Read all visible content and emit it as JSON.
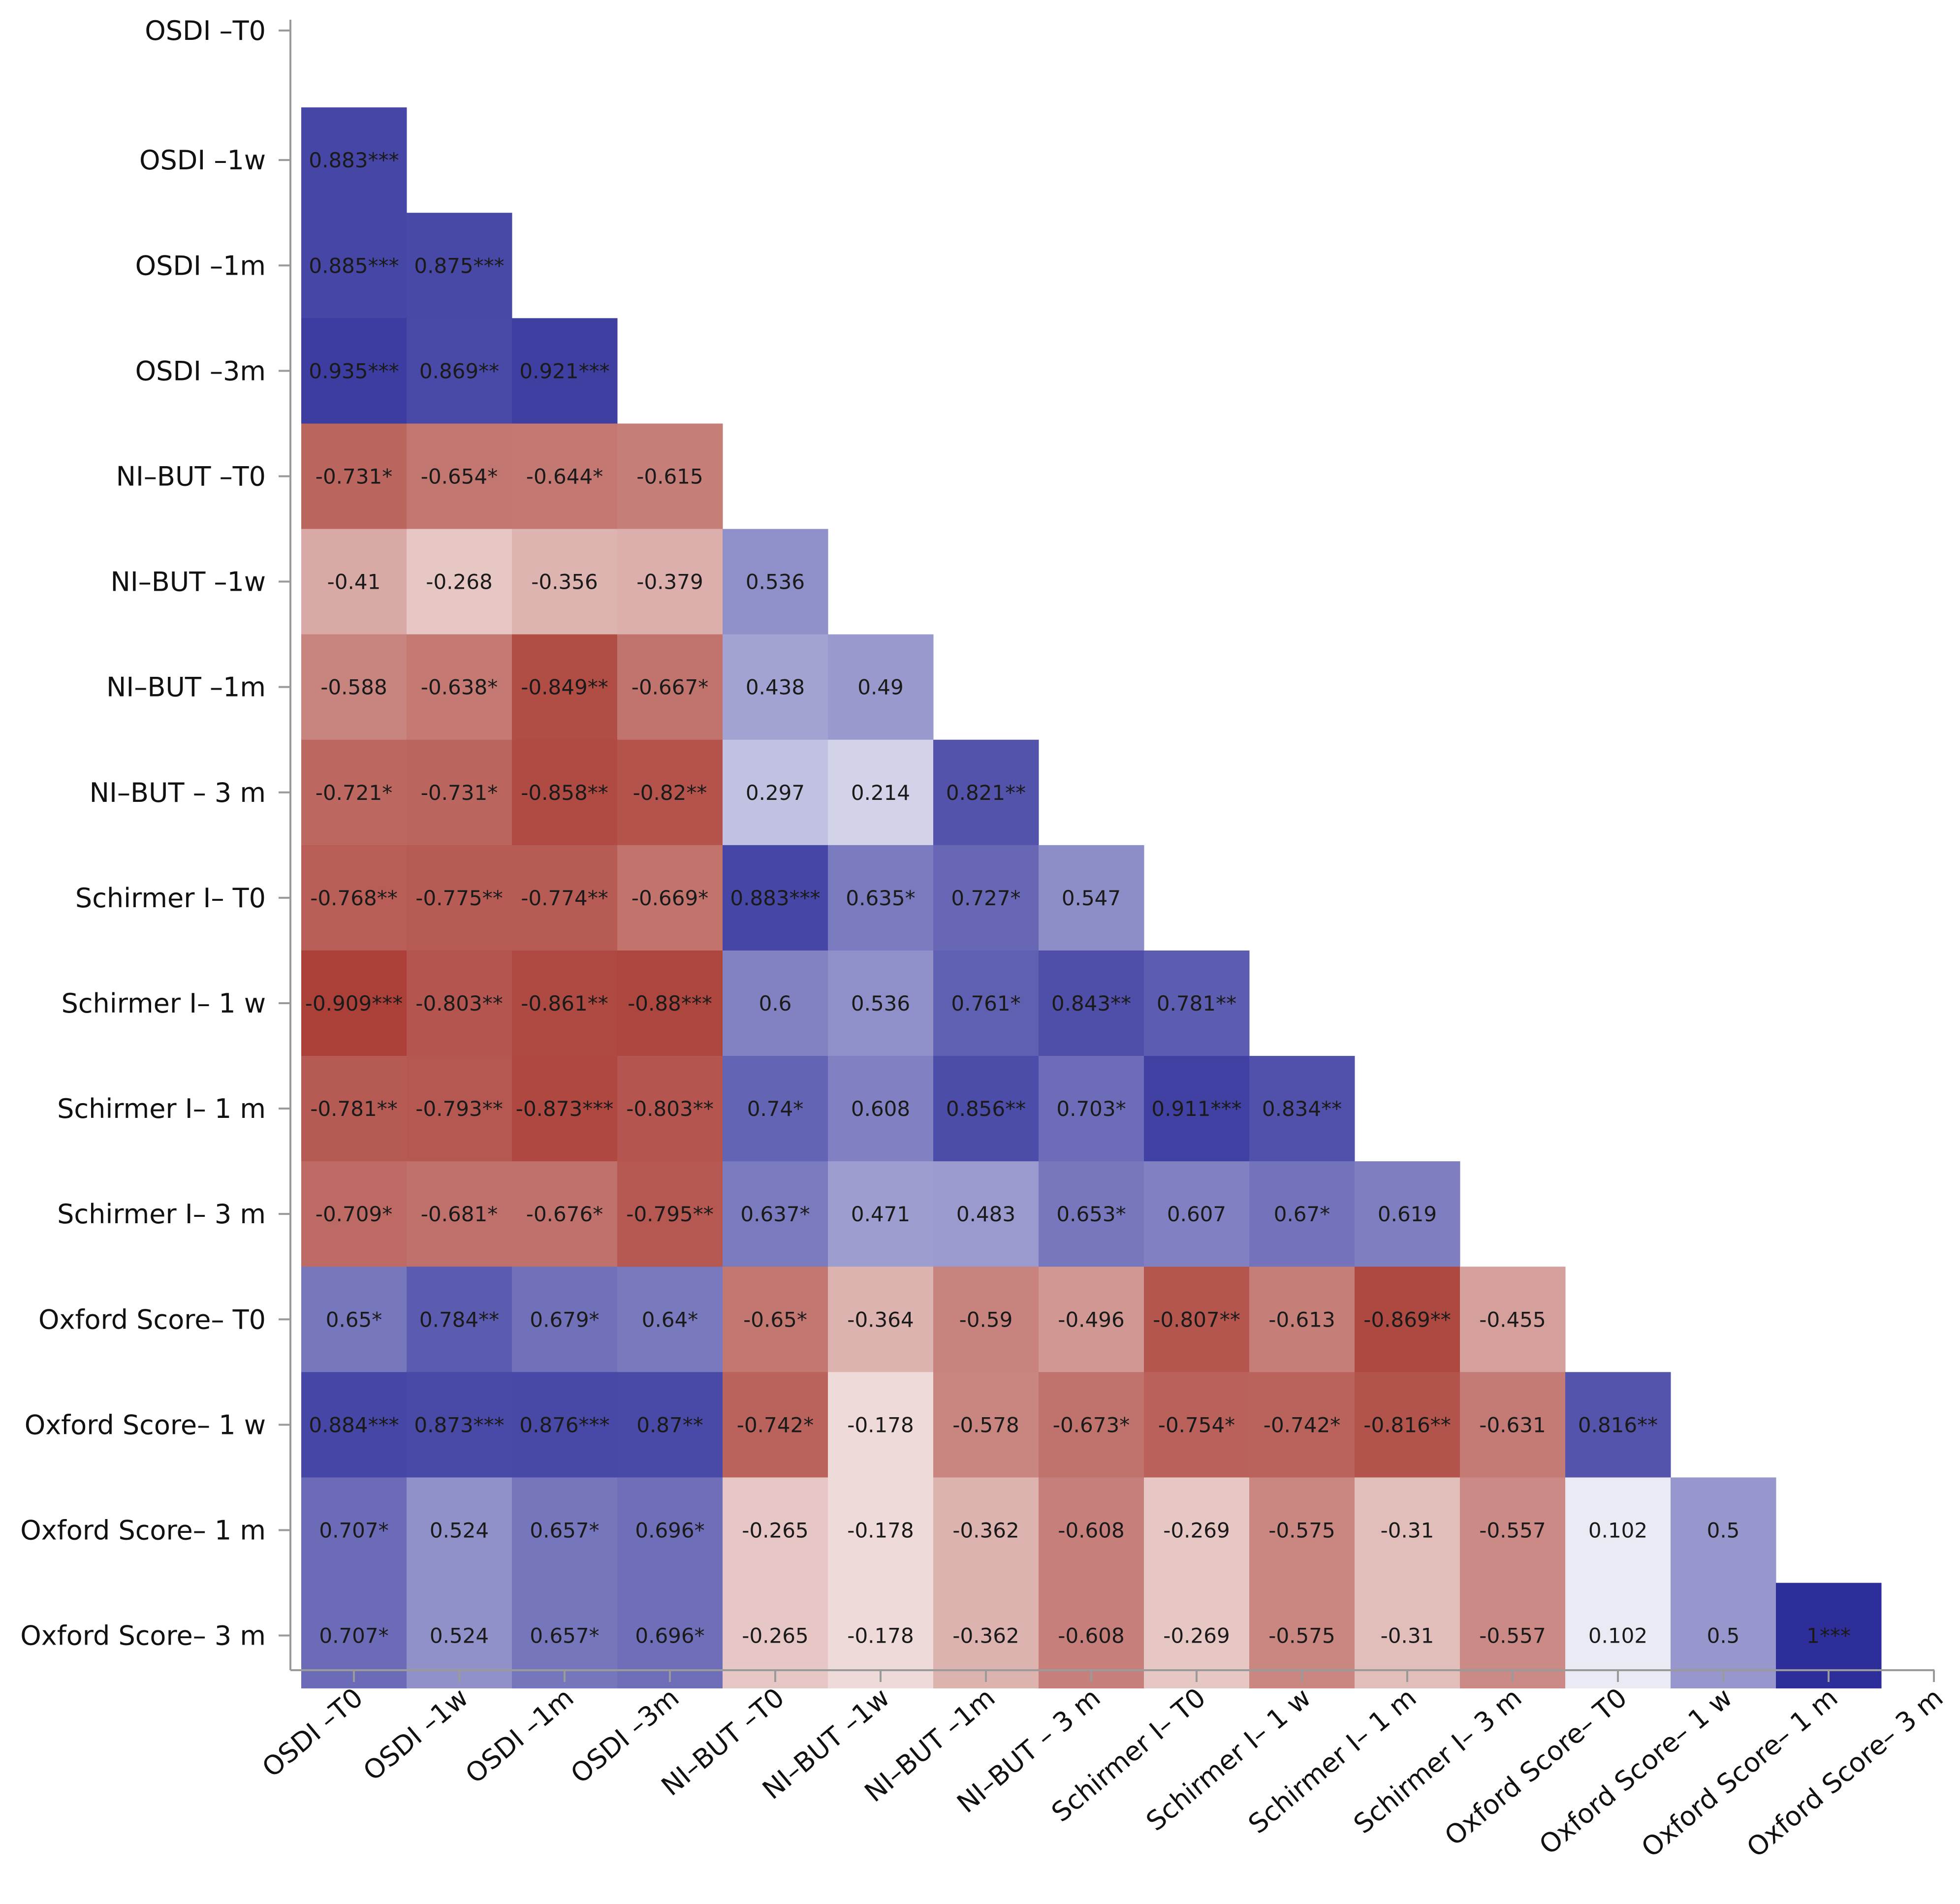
{
  "chart_data": {
    "type": "heatmap",
    "variables": [
      "OSDI –T0",
      "OSDI –1w",
      "OSDI –1m",
      "OSDI –3m",
      "NI–BUT –T0",
      "NI–BUT –1w",
      "NI–BUT –1m",
      "NI–BUT – 3 m",
      "Schirmer I– T0",
      "Schirmer I– 1 w",
      "Schirmer I– 1 m",
      "Schirmer I– 3 m",
      "Oxford Score– T0",
      "Oxford Score– 1 w",
      "Oxford Score– 1 m",
      "Oxford Score– 3 m"
    ],
    "values": [
      [],
      [
        0.883
      ],
      [
        0.885,
        0.875
      ],
      [
        0.935,
        0.869,
        0.921
      ],
      [
        -0.731,
        -0.654,
        -0.644,
        -0.615
      ],
      [
        -0.41,
        -0.268,
        -0.356,
        -0.379,
        0.536
      ],
      [
        -0.588,
        -0.638,
        -0.849,
        -0.667,
        0.438,
        0.49
      ],
      [
        -0.721,
        -0.731,
        -0.858,
        -0.82,
        0.297,
        0.214,
        0.821
      ],
      [
        -0.768,
        -0.775,
        -0.774,
        -0.669,
        0.883,
        0.635,
        0.727,
        0.547
      ],
      [
        -0.909,
        -0.803,
        -0.861,
        -0.88,
        0.6,
        0.536,
        0.761,
        0.843,
        0.781
      ],
      [
        -0.781,
        -0.793,
        -0.873,
        -0.803,
        0.74,
        0.608,
        0.856,
        0.703,
        0.911,
        0.834
      ],
      [
        -0.709,
        -0.681,
        -0.676,
        -0.795,
        0.637,
        0.471,
        0.483,
        0.653,
        0.607,
        0.67,
        0.619
      ],
      [
        0.65,
        0.784,
        0.679,
        0.64,
        -0.65,
        -0.364,
        -0.59,
        -0.496,
        -0.807,
        -0.613,
        -0.869,
        -0.455
      ],
      [
        0.884,
        0.873,
        0.876,
        0.87,
        -0.742,
        -0.178,
        -0.578,
        -0.673,
        -0.754,
        -0.742,
        -0.816,
        -0.631,
        0.816
      ],
      [
        0.707,
        0.524,
        0.657,
        0.696,
        -0.265,
        -0.178,
        -0.362,
        -0.608,
        -0.269,
        -0.575,
        -0.31,
        -0.557,
        0.102,
        0.5
      ],
      [
        0.707,
        0.524,
        0.657,
        0.696,
        -0.265,
        -0.178,
        -0.362,
        -0.608,
        -0.269,
        -0.575,
        -0.31,
        -0.557,
        0.102,
        0.5,
        1
      ]
    ],
    "labels": [
      [],
      [
        "0.883***"
      ],
      [
        "0.885***",
        "0.875***"
      ],
      [
        "0.935***",
        "0.869**",
        "0.921***"
      ],
      [
        "-0.731*",
        "-0.654*",
        "-0.644*",
        "-0.615"
      ],
      [
        "-0.41",
        "-0.268",
        "-0.356",
        "-0.379",
        "0.536"
      ],
      [
        "-0.588",
        "-0.638*",
        "-0.849**",
        "-0.667*",
        "0.438",
        "0.49"
      ],
      [
        "-0.721*",
        "-0.731*",
        "-0.858**",
        "-0.82**",
        "0.297",
        "0.214",
        "0.821**"
      ],
      [
        "-0.768**",
        "-0.775**",
        "-0.774**",
        "-0.669*",
        "0.883***",
        "0.635*",
        "0.727*",
        "0.547"
      ],
      [
        "-0.909***",
        "-0.803**",
        "-0.861**",
        "-0.88***",
        "0.6",
        "0.536",
        "0.761*",
        "0.843**",
        "0.781**"
      ],
      [
        "-0.781**",
        "-0.793**",
        "-0.873***",
        "-0.803**",
        "0.74*",
        "0.608",
        "0.856**",
        "0.703*",
        "0.911***",
        "0.834**"
      ],
      [
        "-0.709*",
        "-0.681*",
        "-0.676*",
        "-0.795**",
        "0.637*",
        "0.471",
        "0.483",
        "0.653*",
        "0.607",
        "0.67*",
        "0.619"
      ],
      [
        "0.65*",
        "0.784**",
        "0.679*",
        "0.64*",
        "-0.65*",
        "-0.364",
        "-0.59",
        "-0.496",
        "-0.807**",
        "-0.613",
        "-0.869**",
        "-0.455"
      ],
      [
        "0.884***",
        "0.873***",
        "0.876***",
        "0.87**",
        "-0.742*",
        "-0.178",
        "-0.578",
        "-0.673*",
        "-0.754*",
        "-0.742*",
        "-0.816**",
        "-0.631",
        "0.816**"
      ],
      [
        "0.707*",
        "0.524",
        "0.657*",
        "0.696*",
        "-0.265",
        "-0.178",
        "-0.362",
        "-0.608",
        "-0.269",
        "-0.575",
        "-0.31",
        "-0.557",
        "0.102",
        "0.5"
      ],
      [
        "0.707*",
        "0.524",
        "0.657*",
        "0.696*",
        "-0.265",
        "-0.178",
        "-0.362",
        "-0.608",
        "-0.269",
        "-0.575",
        "-0.31",
        "-0.557",
        "0.102",
        "0.5",
        "1***"
      ]
    ],
    "value_range": [
      -1,
      1
    ],
    "colors": {
      "positive": "#2e2e9a",
      "negative": "#a22d24",
      "neutral": "#ffffff"
    },
    "grid": false
  }
}
